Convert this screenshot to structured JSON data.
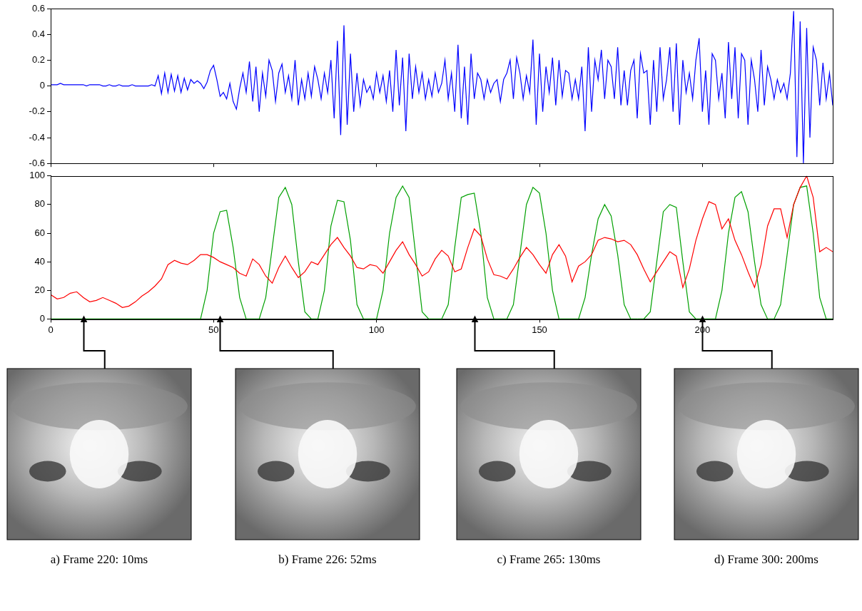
{
  "chart_data": [
    {
      "type": "line",
      "xlim": [
        0,
        240
      ],
      "xticks": [
        0,
        50,
        100,
        150,
        200
      ],
      "ylim": [
        -0.6,
        0.6
      ],
      "yticks": [
        -0.6,
        -0.4,
        -0.2,
        0,
        0.2,
        0.4,
        0.6
      ],
      "grid": false,
      "tick_labels": "y",
      "x": [
        0,
        1,
        2,
        3,
        4,
        5,
        6,
        7,
        8,
        9,
        10,
        11,
        12,
        13,
        14,
        15,
        16,
        17,
        18,
        19,
        20,
        21,
        22,
        23,
        24,
        25,
        26,
        27,
        28,
        29,
        30,
        31,
        32,
        33,
        34,
        35,
        36,
        37,
        38,
        39,
        40,
        41,
        42,
        43,
        44,
        45,
        46,
        47,
        48,
        49,
        50,
        51,
        52,
        53,
        54,
        55,
        56,
        57,
        58,
        59,
        60,
        61,
        62,
        63,
        64,
        65,
        66,
        67,
        68,
        69,
        70,
        71,
        72,
        73,
        74,
        75,
        76,
        77,
        78,
        79,
        80,
        81,
        82,
        83,
        84,
        85,
        86,
        87,
        88,
        89,
        90,
        91,
        92,
        93,
        94,
        95,
        96,
        97,
        98,
        99,
        100,
        101,
        102,
        103,
        104,
        105,
        106,
        107,
        108,
        109,
        110,
        111,
        112,
        113,
        114,
        115,
        116,
        117,
        118,
        119,
        120,
        121,
        122,
        123,
        124,
        125,
        126,
        127,
        128,
        129,
        130,
        131,
        132,
        133,
        134,
        135,
        136,
        137,
        138,
        139,
        140,
        141,
        142,
        143,
        144,
        145,
        146,
        147,
        148,
        149,
        150,
        151,
        152,
        153,
        154,
        155,
        156,
        157,
        158,
        159,
        160,
        161,
        162,
        163,
        164,
        165,
        166,
        167,
        168,
        169,
        170,
        171,
        172,
        173,
        174,
        175,
        176,
        177,
        178,
        179,
        180,
        181,
        182,
        183,
        184,
        185,
        186,
        187,
        188,
        189,
        190,
        191,
        192,
        193,
        194,
        195,
        196,
        197,
        198,
        199,
        200,
        201,
        202,
        203,
        204,
        205,
        206,
        207,
        208,
        209,
        210,
        211,
        212,
        213,
        214,
        215,
        216,
        217,
        218,
        219,
        220,
        221,
        222,
        223,
        224,
        225,
        226,
        227,
        228,
        229,
        230,
        231,
        232,
        233,
        234,
        235,
        236,
        237,
        238,
        239,
        240
      ],
      "series": [
        {
          "color": "#0000ff",
          "values": [
            0.01,
            0.01,
            0.01,
            0.02,
            0.01,
            0.01,
            0.01,
            0.01,
            0.01,
            0.01,
            0.01,
            0,
            0.01,
            0.01,
            0.01,
            0.01,
            0,
            0,
            0.01,
            0,
            0,
            0.01,
            0,
            0,
            0,
            0.01,
            0,
            0,
            0,
            0,
            0,
            0.01,
            0,
            0.08,
            -0.06,
            0.1,
            -0.05,
            0.09,
            -0.04,
            0.08,
            -0.05,
            0.06,
            -0.03,
            0.05,
            0.02,
            0.04,
            0.02,
            -0.02,
            0.03,
            0.12,
            0.16,
            0.05,
            -0.08,
            -0.05,
            -0.1,
            0.02,
            -0.12,
            -0.18,
            -0.02,
            0.1,
            -0.05,
            0.19,
            -0.12,
            0.15,
            -0.2,
            0.1,
            -0.08,
            0.2,
            0.12,
            -0.12,
            0.1,
            0.17,
            -0.05,
            0.08,
            -0.1,
            0.2,
            -0.15,
            0.05,
            -0.1,
            0.1,
            -0.08,
            0.15,
            0.05,
            -0.1,
            0.1,
            -0.05,
            0.2,
            -0.25,
            0.35,
            -0.38,
            0.47,
            -0.3,
            0.25,
            -0.2,
            0.1,
            -0.15,
            0.05,
            -0.05,
            0,
            -0.1,
            0.1,
            -0.05,
            0.08,
            -0.12,
            0.12,
            -0.2,
            0.28,
            -0.15,
            0.22,
            -0.35,
            0.25,
            -0.1,
            0.15,
            -0.05,
            0.1,
            -0.1,
            0.05,
            -0.08,
            0.1,
            -0.05,
            0.02,
            0.2,
            -0.1,
            0.1,
            -0.2,
            0.32,
            -0.25,
            0.15,
            -0.3,
            0.25,
            -0.1,
            0.1,
            0.05,
            -0.1,
            0.05,
            -0.05,
            0.02,
            0.05,
            -0.12,
            0.05,
            0.1,
            0.2,
            -0.1,
            0.22,
            0.1,
            -0.1,
            0.08,
            -0.05,
            0.36,
            -0.3,
            0.25,
            -0.2,
            0.15,
            -0.05,
            0.22,
            -0.15,
            0.2,
            -0.08,
            0.12,
            0.1,
            -0.1,
            0.05,
            -0.1,
            0.15,
            -0.35,
            0.3,
            -0.2,
            0.2,
            0.05,
            0.28,
            -0.1,
            0.2,
            0.15,
            -0.1,
            0.3,
            -0.15,
            0.12,
            -0.15,
            0.12,
            0.2,
            -0.25,
            0.25,
            0.1,
            0.12,
            -0.3,
            0.2,
            -0.2,
            0.3,
            -0.1,
            0.05,
            0.3,
            -0.2,
            0.33,
            -0.3,
            0.2,
            -0.05,
            0.1,
            -0.1,
            0.2,
            0.37,
            -0.2,
            0.12,
            -0.3,
            0.25,
            0.2,
            -0.1,
            0.1,
            -0.25,
            0.34,
            -0.1,
            0.3,
            -0.25,
            0.25,
            0.2,
            -0.3,
            0.2,
            0.05,
            -0.2,
            0.28,
            -0.15,
            0.15,
            0.05,
            -0.1,
            0.05,
            -0.05,
            0.02,
            -0.1,
            0.1,
            0.58,
            -0.55,
            0.5,
            -0.6,
            0.45,
            -0.4,
            0.3,
            0.2,
            -0.15,
            0.18,
            -0.1,
            0.1,
            -0.15
          ]
        }
      ]
    },
    {
      "type": "line",
      "xlim": [
        0,
        240
      ],
      "xticks": [
        0,
        50,
        100,
        150,
        200
      ],
      "ylim": [
        0,
        100
      ],
      "yticks": [
        0,
        20,
        40,
        60,
        80,
        100
      ],
      "grid": false,
      "x": [
        0,
        2,
        4,
        6,
        8,
        10,
        12,
        14,
        16,
        18,
        20,
        22,
        24,
        26,
        28,
        30,
        32,
        34,
        36,
        38,
        40,
        42,
        44,
        46,
        48,
        50,
        52,
        54,
        56,
        58,
        60,
        62,
        64,
        66,
        68,
        70,
        72,
        74,
        76,
        78,
        80,
        82,
        84,
        86,
        88,
        90,
        92,
        94,
        96,
        98,
        100,
        102,
        104,
        106,
        108,
        110,
        112,
        114,
        116,
        118,
        120,
        122,
        124,
        126,
        128,
        130,
        132,
        134,
        136,
        138,
        140,
        142,
        144,
        146,
        148,
        150,
        152,
        154,
        156,
        158,
        160,
        162,
        164,
        166,
        168,
        170,
        172,
        174,
        176,
        178,
        180,
        182,
        184,
        186,
        188,
        190,
        192,
        194,
        196,
        198,
        200,
        202,
        204,
        206,
        208,
        210,
        212,
        214,
        216,
        218,
        220,
        222,
        224,
        226,
        228,
        230,
        232,
        234,
        236,
        238,
        240
      ],
      "series": [
        {
          "color": "#ff0000",
          "values": [
            17,
            14,
            15,
            18,
            19,
            15,
            12,
            13,
            15,
            13,
            11,
            8,
            9,
            12,
            16,
            19,
            23,
            28,
            38,
            41,
            39,
            38,
            41,
            45,
            45,
            43,
            40,
            38,
            36,
            32,
            30,
            42,
            38,
            30,
            25,
            36,
            44,
            36,
            29,
            33,
            40,
            38,
            45,
            52,
            57,
            50,
            44,
            36,
            35,
            38,
            37,
            32,
            40,
            48,
            54,
            45,
            38,
            30,
            33,
            42,
            48,
            44,
            33,
            35,
            50,
            63,
            58,
            42,
            31,
            30,
            28,
            35,
            43,
            50,
            45,
            38,
            32,
            45,
            52,
            44,
            26,
            37,
            40,
            45,
            55,
            57,
            56,
            54,
            55,
            52,
            45,
            35,
            26,
            33,
            40,
            47,
            44,
            22,
            35,
            55,
            70,
            82,
            80,
            63,
            70,
            55,
            45,
            33,
            22,
            38,
            65,
            77,
            77,
            57,
            80,
            92,
            100,
            85,
            47,
            50,
            47
          ]
        },
        {
          "color": "#00a000",
          "values": [
            0,
            0,
            0,
            0,
            0,
            0,
            0,
            0,
            0,
            0,
            0,
            0,
            0,
            0,
            0,
            0,
            0,
            0,
            0,
            0,
            0,
            0,
            0,
            0,
            20,
            60,
            75,
            76,
            50,
            15,
            0,
            0,
            0,
            15,
            50,
            85,
            92,
            80,
            40,
            5,
            0,
            0,
            20,
            65,
            83,
            82,
            55,
            10,
            0,
            0,
            0,
            20,
            60,
            85,
            93,
            85,
            45,
            5,
            0,
            0,
            0,
            10,
            50,
            85,
            87,
            88,
            60,
            15,
            0,
            0,
            0,
            10,
            45,
            80,
            92,
            88,
            60,
            20,
            0,
            0,
            0,
            0,
            15,
            45,
            70,
            80,
            72,
            45,
            10,
            0,
            0,
            0,
            5,
            40,
            75,
            80,
            78,
            40,
            5,
            0,
            0,
            0,
            0,
            20,
            60,
            85,
            89,
            75,
            40,
            10,
            0,
            0,
            10,
            45,
            80,
            92,
            93,
            60,
            15,
            0,
            0
          ]
        }
      ]
    }
  ],
  "frames": [
    {
      "caption": "a) Frame 220: 10ms",
      "time": 10
    },
    {
      "caption": "b) Frame 226: 52ms",
      "time": 52
    },
    {
      "caption": "c) Frame 265: 130ms",
      "time": 130
    },
    {
      "caption": "d) Frame 300: 200ms",
      "time": 200
    }
  ]
}
